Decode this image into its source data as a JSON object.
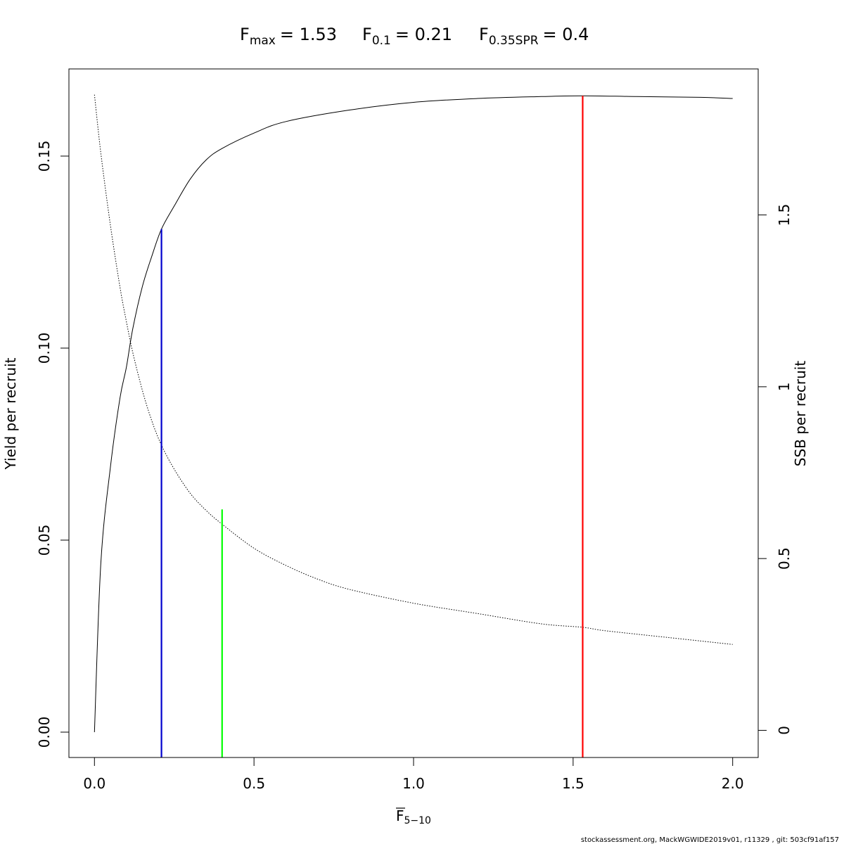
{
  "title": {
    "fmax": {
      "base": "F",
      "sub": "max",
      "value": "= 1.53"
    },
    "f01": {
      "base": "F",
      "sub": "0.1",
      "value": "= 0.21"
    },
    "f035": {
      "base": "F",
      "sub": "0.35SPR",
      "value": "= 0.4"
    }
  },
  "footer": "stockassessment.org, MackWGWIDE2019v01, r11329 , git: 503cf91af157",
  "chart_data": {
    "type": "line",
    "xlabel": {
      "base": "F",
      "sub": "5−10"
    },
    "ylabel": "Yield per recruit",
    "y2label": "SSB per recruit",
    "xlim": [
      -0.08,
      2.08
    ],
    "ylim": [
      -0.0066,
      0.1727
    ],
    "y2lim": [
      -0.079,
      1.925
    ],
    "x_ticks": [
      "0.0",
      "0.5",
      "1.0",
      "1.5",
      "2.0"
    ],
    "y_ticks": [
      "0.00",
      "0.05",
      "0.10",
      "0.15"
    ],
    "y2_ticks": [
      "0",
      "0.5",
      "1",
      "1.5"
    ],
    "grid": false,
    "series": [
      {
        "axis": "left",
        "style": "solid",
        "color": "#000000",
        "x": [
          0.0,
          0.02,
          0.05,
          0.08,
          0.1,
          0.12,
          0.15,
          0.18,
          0.21,
          0.25,
          0.3,
          0.35,
          0.4,
          0.5,
          0.6,
          0.8,
          1.0,
          1.2,
          1.4,
          1.53,
          1.7,
          1.9,
          2.0
        ],
        "y": [
          0.0,
          0.044,
          0.069,
          0.087,
          0.095,
          0.105,
          0.116,
          0.124,
          0.131,
          0.137,
          0.144,
          0.149,
          0.152,
          0.156,
          0.159,
          0.162,
          0.164,
          0.165,
          0.1655,
          0.1657,
          0.1655,
          0.1653,
          0.165
        ]
      },
      {
        "axis": "right",
        "style": "dotted",
        "color": "#000000",
        "x": [
          0.0,
          0.02,
          0.05,
          0.08,
          0.1,
          0.12,
          0.15,
          0.18,
          0.21,
          0.25,
          0.3,
          0.35,
          0.4,
          0.5,
          0.6,
          0.7,
          0.8,
          1.0,
          1.2,
          1.4,
          1.53,
          1.6,
          1.8,
          2.0
        ],
        "y": [
          1.85,
          1.68,
          1.47,
          1.29,
          1.19,
          1.1,
          0.99,
          0.9,
          0.83,
          0.76,
          0.69,
          0.64,
          0.6,
          0.53,
          0.48,
          0.44,
          0.41,
          0.37,
          0.34,
          0.31,
          0.3,
          0.29,
          0.27,
          0.25
        ]
      }
    ],
    "reference_lines": [
      {
        "name": "F0.1",
        "x": 0.21,
        "y_top": 0.131,
        "color": "#0000cd"
      },
      {
        "name": "F0.35SPR",
        "x": 0.4,
        "y_top": 0.058,
        "color": "#00ff00"
      },
      {
        "name": "Fmax",
        "x": 1.53,
        "y_top": 0.1657,
        "color": "#ff0000"
      }
    ]
  }
}
